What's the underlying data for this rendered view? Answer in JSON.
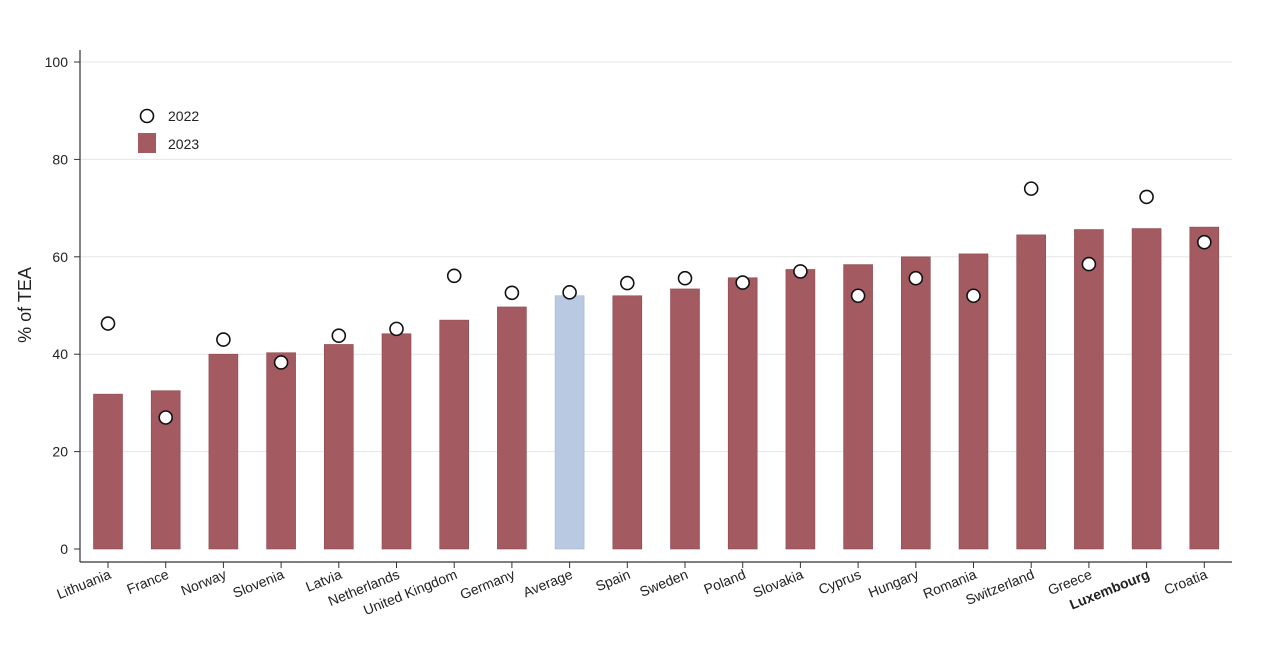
{
  "chart_data": {
    "type": "bar",
    "title": "",
    "xlabel": "",
    "ylabel": "% of TEA",
    "ylim": [
      0,
      100
    ],
    "yticks": [
      0,
      20,
      40,
      60,
      80,
      100
    ],
    "grid": "horizontal",
    "legend_position": "top-left",
    "categories": [
      "Lithuania",
      "France",
      "Norway",
      "Slovenia",
      "Latvia",
      "Netherlands",
      "United Kingdom",
      "Germany",
      "Average",
      "Spain",
      "Sweden",
      "Poland",
      "Slovakia",
      "Cyprus",
      "Hungary",
      "Romania",
      "Switzerland",
      "Greece",
      "Luxembourg",
      "Croatia"
    ],
    "highlight_category": "Luxembourg",
    "average_category": "Average",
    "series": [
      {
        "name": "2023",
        "kind": "bar",
        "color": "#a35a60",
        "average_color": "#b8c9e1",
        "values": [
          31.8,
          32.5,
          40.0,
          40.3,
          42.0,
          44.2,
          47.0,
          49.7,
          52.0,
          52.0,
          53.4,
          55.7,
          57.4,
          58.4,
          60.0,
          60.6,
          64.5,
          65.6,
          65.8,
          66.1
        ]
      },
      {
        "name": "2022",
        "kind": "marker",
        "color": "#ffffff",
        "values": [
          46.3,
          27.0,
          43.0,
          38.3,
          43.8,
          45.2,
          56.1,
          52.6,
          52.7,
          54.6,
          55.6,
          54.7,
          57.0,
          52.0,
          55.6,
          52.0,
          74.0,
          58.5,
          72.3,
          63.0
        ]
      }
    ]
  }
}
